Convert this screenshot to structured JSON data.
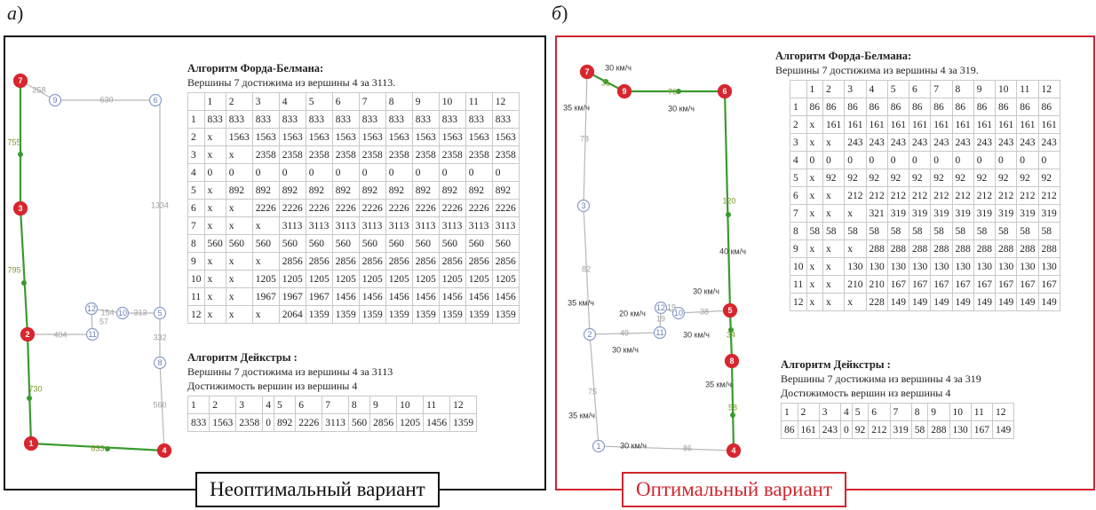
{
  "panel_a": {
    "letter": "а",
    "paren": ")",
    "caption": "Неоптимальный вариант",
    "nodes": [
      {
        "id": "1",
        "type": "red"
      },
      {
        "id": "2",
        "type": "red"
      },
      {
        "id": "3",
        "type": "red"
      },
      {
        "id": "4",
        "type": "red"
      },
      {
        "id": "5",
        "type": "white"
      },
      {
        "id": "6",
        "type": "white"
      },
      {
        "id": "7",
        "type": "red"
      },
      {
        "id": "8",
        "type": "white"
      },
      {
        "id": "9",
        "type": "white"
      },
      {
        "id": "10",
        "type": "white"
      },
      {
        "id": "11",
        "type": "white"
      },
      {
        "id": "12",
        "type": "white"
      }
    ],
    "edge_labels": {
      "e7_9": "258",
      "e9_6": "630",
      "e6_5": "1334",
      "e7_3": "755",
      "e3_2": "795",
      "e2_11": "404",
      "e11_12": "57",
      "e12_10": "154",
      "e10_5": "313",
      "e5_8": "332",
      "e8_4": "560",
      "e2_1": "730",
      "e1_4": "833"
    },
    "bellman": {
      "title": "Алгоритм Форда-Белмана:",
      "result": "Вершины 7 достижима из вершины 4 за 3113.",
      "header": [
        "",
        "1",
        "2",
        "3",
        "4",
        "5",
        "6",
        "7",
        "8",
        "9",
        "10",
        "11",
        "12"
      ],
      "rows": [
        [
          "1",
          "833",
          "833",
          "833",
          "833",
          "833",
          "833",
          "833",
          "833",
          "833",
          "833",
          "833",
          "833"
        ],
        [
          "2",
          "x",
          "1563",
          "1563",
          "1563",
          "1563",
          "1563",
          "1563",
          "1563",
          "1563",
          "1563",
          "1563",
          "1563"
        ],
        [
          "3",
          "x",
          "x",
          "2358",
          "2358",
          "2358",
          "2358",
          "2358",
          "2358",
          "2358",
          "2358",
          "2358",
          "2358"
        ],
        [
          "4",
          "0",
          "0",
          "0",
          "0",
          "0",
          "0",
          "0",
          "0",
          "0",
          "0",
          "0",
          "0"
        ],
        [
          "5",
          "x",
          "892",
          "892",
          "892",
          "892",
          "892",
          "892",
          "892",
          "892",
          "892",
          "892",
          "892"
        ],
        [
          "6",
          "x",
          "x",
          "2226",
          "2226",
          "2226",
          "2226",
          "2226",
          "2226",
          "2226",
          "2226",
          "2226",
          "2226"
        ],
        [
          "7",
          "x",
          "x",
          "x",
          "3113",
          "3113",
          "3113",
          "3113",
          "3113",
          "3113",
          "3113",
          "3113",
          "3113"
        ],
        [
          "8",
          "560",
          "560",
          "560",
          "560",
          "560",
          "560",
          "560",
          "560",
          "560",
          "560",
          "560",
          "560"
        ],
        [
          "9",
          "x",
          "x",
          "x",
          "2856",
          "2856",
          "2856",
          "2856",
          "2856",
          "2856",
          "2856",
          "2856",
          "2856"
        ],
        [
          "10",
          "x",
          "x",
          "1205",
          "1205",
          "1205",
          "1205",
          "1205",
          "1205",
          "1205",
          "1205",
          "1205",
          "1205"
        ],
        [
          "11",
          "x",
          "x",
          "1967",
          "1967",
          "1967",
          "1456",
          "1456",
          "1456",
          "1456",
          "1456",
          "1456",
          "1456"
        ],
        [
          "12",
          "x",
          "x",
          "x",
          "2064",
          "1359",
          "1359",
          "1359",
          "1359",
          "1359",
          "1359",
          "1359",
          "1359"
        ]
      ]
    },
    "dijkstra": {
      "title": "Алгоритм Дейкстры :",
      "result": "Вершины 7 достижима из вершины 4 за 3113",
      "reach": "Достижимость вершин из вершины 4",
      "header": [
        "1",
        "2",
        "3",
        "4",
        "5",
        "6",
        "7",
        "8",
        "9",
        "10",
        "11",
        "12"
      ],
      "values": [
        "833",
        "1563",
        "2358",
        "0",
        "892",
        "2226",
        "3113",
        "560",
        "2856",
        "1205",
        "1456",
        "1359"
      ]
    }
  },
  "panel_b": {
    "letter": "б",
    "paren": ")",
    "caption": "Оптимальный вариант",
    "nodes": [
      {
        "id": "1",
        "type": "white"
      },
      {
        "id": "2",
        "type": "white"
      },
      {
        "id": "3",
        "type": "white"
      },
      {
        "id": "4",
        "type": "red"
      },
      {
        "id": "5",
        "type": "red"
      },
      {
        "id": "6",
        "type": "red"
      },
      {
        "id": "7",
        "type": "red"
      },
      {
        "id": "8",
        "type": "red"
      },
      {
        "id": "9",
        "type": "red"
      },
      {
        "id": "10",
        "type": "white"
      },
      {
        "id": "11",
        "type": "white"
      },
      {
        "id": "12",
        "type": "white"
      }
    ],
    "edge_labels": {
      "e7_9": "31",
      "e9_6": "76",
      "e6_5": "120",
      "e7_3": "78",
      "e3_2": "82",
      "e2_11": "49",
      "e11_12": "19",
      "e12_10": "19",
      "e10_5": "38",
      "e5_8": "34",
      "e8_4": "58",
      "e2_1": "75",
      "e1_4": "86",
      "e1_4_lead": "35"
    },
    "speed_label": "30 км/ч",
    "speed_label_35": "35 км/ч",
    "speed_label_20": "20 км/ч",
    "speed_label_40": "40 км/ч",
    "bellman": {
      "title": "Алгоритм Форда-Белмана:",
      "result": "Вершины 7 достижима из вершины 4 за 319.",
      "header": [
        "",
        "1",
        "2",
        "3",
        "4",
        "5",
        "6",
        "7",
        "8",
        "9",
        "10",
        "11",
        "12"
      ],
      "rows": [
        [
          "1",
          "86",
          "86",
          "86",
          "86",
          "86",
          "86",
          "86",
          "86",
          "86",
          "86",
          "86",
          "86"
        ],
        [
          "2",
          "x",
          "161",
          "161",
          "161",
          "161",
          "161",
          "161",
          "161",
          "161",
          "161",
          "161",
          "161"
        ],
        [
          "3",
          "x",
          "x",
          "243",
          "243",
          "243",
          "243",
          "243",
          "243",
          "243",
          "243",
          "243",
          "243"
        ],
        [
          "4",
          "0",
          "0",
          "0",
          "0",
          "0",
          "0",
          "0",
          "0",
          "0",
          "0",
          "0",
          "0"
        ],
        [
          "5",
          "x",
          "92",
          "92",
          "92",
          "92",
          "92",
          "92",
          "92",
          "92",
          "92",
          "92",
          "92"
        ],
        [
          "6",
          "x",
          "x",
          "212",
          "212",
          "212",
          "212",
          "212",
          "212",
          "212",
          "212",
          "212",
          "212"
        ],
        [
          "7",
          "x",
          "x",
          "x",
          "321",
          "319",
          "319",
          "319",
          "319",
          "319",
          "319",
          "319",
          "319"
        ],
        [
          "8",
          "58",
          "58",
          "58",
          "58",
          "58",
          "58",
          "58",
          "58",
          "58",
          "58",
          "58",
          "58"
        ],
        [
          "9",
          "x",
          "x",
          "x",
          "288",
          "288",
          "288",
          "288",
          "288",
          "288",
          "288",
          "288",
          "288"
        ],
        [
          "10",
          "x",
          "x",
          "130",
          "130",
          "130",
          "130",
          "130",
          "130",
          "130",
          "130",
          "130",
          "130"
        ],
        [
          "11",
          "x",
          "x",
          "210",
          "210",
          "167",
          "167",
          "167",
          "167",
          "167",
          "167",
          "167",
          "167"
        ],
        [
          "12",
          "x",
          "x",
          "x",
          "228",
          "149",
          "149",
          "149",
          "149",
          "149",
          "149",
          "149",
          "149"
        ]
      ]
    },
    "dijkstra": {
      "title": "Алгоритм Дейкстры :",
      "result": "Вершины 7 достижима из вершины 4 за 319",
      "reach": "Достижимость вершин из вершины 4",
      "header": [
        "1",
        "2",
        "3",
        "4",
        "5",
        "6",
        "7",
        "8",
        "9",
        "10",
        "11",
        "12"
      ],
      "values": [
        "86",
        "161",
        "243",
        "0",
        "92",
        "212",
        "319",
        "58",
        "288",
        "130",
        "167",
        "149"
      ]
    }
  },
  "colors": {
    "red_node": "#d8262e",
    "green_edge": "#3a9a2f",
    "gray_edge": "#b8b8b8",
    "white_node_stroke": "#8a9cc8",
    "label_green": "#7a9a2a",
    "label_gray": "#a0a0a0",
    "frame_b": "#d0262f"
  }
}
